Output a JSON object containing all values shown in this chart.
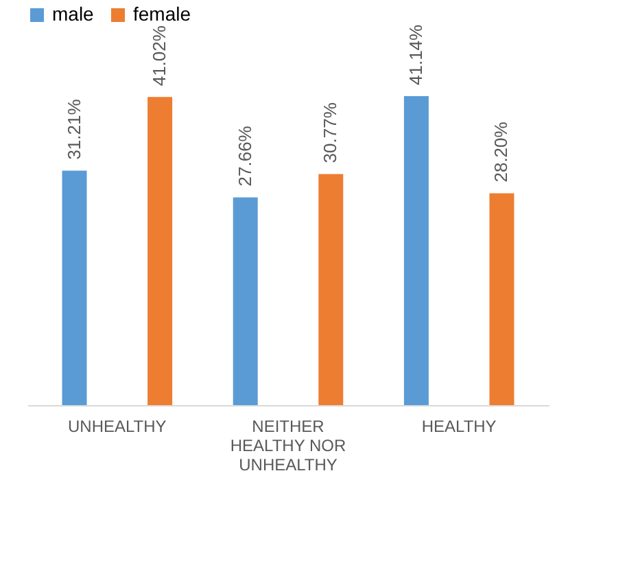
{
  "chart_data": {
    "type": "bar",
    "categories": [
      "UNHEALTHY",
      "NEITHER\nHEALTHY NOR\nUNHEALTHY",
      "HEALTHY"
    ],
    "series": [
      {
        "name": "male",
        "color": "#5b9bd5",
        "values": [
          31.21,
          27.66,
          41.14
        ],
        "value_labels": [
          "31.21%",
          "27.66%",
          "41.14%"
        ]
      },
      {
        "name": "female",
        "color": "#ed7d31",
        "values": [
          41.02,
          30.77,
          28.2
        ],
        "value_labels": [
          "41.02%",
          "30.77%",
          "28.20%"
        ]
      }
    ],
    "legend": "top",
    "grid": false
  }
}
